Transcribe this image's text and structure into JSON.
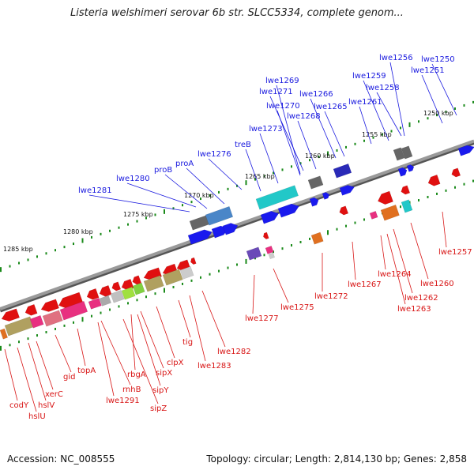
{
  "title": "Listeria welshimeri serovar 6b str. SLCC5334, complete genom...",
  "footer": {
    "accession": "Accession: NC_008555",
    "summary": "Topology: circular; Length: 2,814,130 bp; Genes: 2,858"
  },
  "colors": {
    "plus_strand_label": "#1a1adf",
    "minus_strand_label": "#d81515",
    "axis": "#9a9a9a",
    "tick_dots": "#1a8a1a"
  },
  "kbp_marks": [
    "1250 kbp",
    "1255 kbp",
    "1260 kbp",
    "1265 kbp",
    "1270 kbp",
    "1275 kbp",
    "1280 kbp",
    "1285 kbp"
  ],
  "upper_genes": [
    "lwe1256",
    "lwe1250",
    "lwe1251",
    "lwe1269",
    "lwe1259",
    "lwe1271",
    "lwe1266",
    "lwe1258",
    "lwe1270",
    "lwe1265",
    "lwe1261",
    "lwe1268",
    "lwe1273",
    "treB",
    "lwe1276",
    "proA",
    "proB",
    "lwe1280",
    "lwe1281"
  ],
  "lower_genes": [
    "lwe1257",
    "lwe1264",
    "lwe1260",
    "lwe1267",
    "lwe1262",
    "lwe1275",
    "lwe1272",
    "lwe1263",
    "lwe1277",
    "lwe1282",
    "tig",
    "lwe1283",
    "clpX",
    "sipX",
    "rbgA",
    "topA",
    "gid",
    "rnhB",
    "sipY",
    "xerC",
    "lwe1291",
    "hslV",
    "codY",
    "sipZ",
    "hslU"
  ]
}
